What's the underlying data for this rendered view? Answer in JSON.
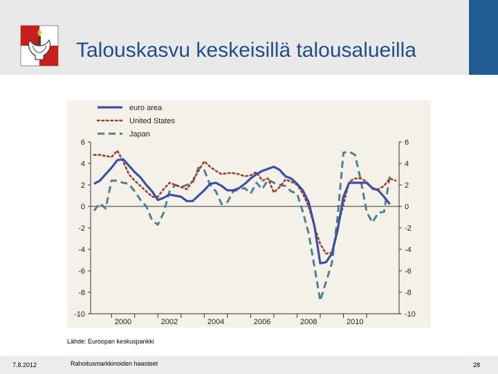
{
  "header": {
    "title": "Talouskasvu keskeisillä talousalueilla"
  },
  "colors": {
    "header_bg": "#e9e9e9",
    "accent": "#215b93",
    "title": "#1f4e8c",
    "plot_bg": "#f4f2e8",
    "euro_area": "#3b4fa8",
    "united_states": "#a33a2a",
    "japan": "#4e8090"
  },
  "logo": {
    "icon": "torch-crest-icon"
  },
  "source": "Lähde:  Euroopan keskuspankki",
  "footer": {
    "date": "7.8.2012",
    "center": "Rahoitusmarkkinoiden haasteet",
    "page": "28"
  },
  "chart_data": {
    "type": "line",
    "title": "",
    "xlabel": "",
    "ylabel": "",
    "ylim": [
      -10,
      6
    ],
    "xlim": [
      1999.1,
      2012.4
    ],
    "yticks": [
      6,
      4,
      2,
      0,
      -2,
      -4,
      -6,
      -8,
      -10
    ],
    "xticks": [
      "2000",
      "2002",
      "2004",
      "2006",
      "2008",
      "2010"
    ],
    "legend_position": "top-left",
    "grid": false,
    "series": [
      {
        "name": "euro area",
        "style": "solid",
        "points": [
          [
            1999.25,
            2.1
          ],
          [
            1999.5,
            2.4
          ],
          [
            1999.75,
            3.0
          ],
          [
            2000.0,
            3.6
          ],
          [
            2000.25,
            4.3
          ],
          [
            2000.5,
            4.4
          ],
          [
            2000.75,
            3.8
          ],
          [
            2001.0,
            3.2
          ],
          [
            2001.25,
            2.7
          ],
          [
            2001.5,
            2.0
          ],
          [
            2001.75,
            1.4
          ],
          [
            2002.0,
            0.6
          ],
          [
            2002.25,
            0.8
          ],
          [
            2002.5,
            1.1
          ],
          [
            2002.75,
            1.0
          ],
          [
            2003.0,
            0.9
          ],
          [
            2003.25,
            0.5
          ],
          [
            2003.5,
            0.5
          ],
          [
            2003.75,
            1.0
          ],
          [
            2004.0,
            1.5
          ],
          [
            2004.25,
            2.1
          ],
          [
            2004.5,
            2.2
          ],
          [
            2004.75,
            1.9
          ],
          [
            2005.0,
            1.5
          ],
          [
            2005.25,
            1.5
          ],
          [
            2005.5,
            1.7
          ],
          [
            2005.75,
            2.1
          ],
          [
            2006.0,
            2.6
          ],
          [
            2006.25,
            3.0
          ],
          [
            2006.5,
            3.3
          ],
          [
            2006.75,
            3.5
          ],
          [
            2007.0,
            3.7
          ],
          [
            2007.25,
            3.4
          ],
          [
            2007.5,
            2.8
          ],
          [
            2007.75,
            2.6
          ],
          [
            2008.0,
            2.1
          ],
          [
            2008.25,
            1.5
          ],
          [
            2008.5,
            0.4
          ],
          [
            2008.75,
            -1.8
          ],
          [
            2009.0,
            -5.3
          ],
          [
            2009.25,
            -5.2
          ],
          [
            2009.5,
            -4.4
          ],
          [
            2009.75,
            -2.2
          ],
          [
            2010.0,
            0.9
          ],
          [
            2010.25,
            2.2
          ],
          [
            2010.5,
            2.2
          ],
          [
            2010.75,
            2.2
          ],
          [
            2011.0,
            2.2
          ],
          [
            2011.25,
            1.7
          ],
          [
            2011.5,
            1.5
          ],
          [
            2011.75,
            0.9
          ],
          [
            2012.0,
            0.2
          ]
        ]
      },
      {
        "name": "United States",
        "style": "dotted",
        "points": [
          [
            1999.25,
            4.8
          ],
          [
            1999.5,
            4.8
          ],
          [
            1999.75,
            4.7
          ],
          [
            2000.0,
            4.6
          ],
          [
            2000.25,
            5.2
          ],
          [
            2000.5,
            4.2
          ],
          [
            2000.75,
            3.0
          ],
          [
            2001.0,
            2.4
          ],
          [
            2001.25,
            1.9
          ],
          [
            2001.5,
            1.4
          ],
          [
            2001.75,
            0.9
          ],
          [
            2002.0,
            0.9
          ],
          [
            2002.25,
            1.6
          ],
          [
            2002.5,
            2.2
          ],
          [
            2002.75,
            2.0
          ],
          [
            2003.0,
            1.8
          ],
          [
            2003.25,
            1.6
          ],
          [
            2003.5,
            2.4
          ],
          [
            2003.75,
            3.3
          ],
          [
            2004.0,
            4.2
          ],
          [
            2004.25,
            3.7
          ],
          [
            2004.5,
            3.3
          ],
          [
            2004.75,
            3.0
          ],
          [
            2005.0,
            3.1
          ],
          [
            2005.25,
            3.1
          ],
          [
            2005.5,
            3.0
          ],
          [
            2005.75,
            2.8
          ],
          [
            2006.0,
            2.9
          ],
          [
            2006.25,
            3.2
          ],
          [
            2006.5,
            2.4
          ],
          [
            2006.75,
            2.6
          ],
          [
            2007.0,
            1.3
          ],
          [
            2007.25,
            1.8
          ],
          [
            2007.5,
            2.5
          ],
          [
            2007.75,
            2.3
          ],
          [
            2008.0,
            2.0
          ],
          [
            2008.25,
            1.2
          ],
          [
            2008.5,
            0.0
          ],
          [
            2008.75,
            -1.9
          ],
          [
            2009.0,
            -3.5
          ],
          [
            2009.25,
            -4.4
          ],
          [
            2009.5,
            -4.3
          ],
          [
            2009.75,
            -2.0
          ],
          [
            2010.0,
            0.2
          ],
          [
            2010.25,
            2.3
          ],
          [
            2010.5,
            2.6
          ],
          [
            2010.75,
            2.6
          ],
          [
            2011.0,
            2.3
          ],
          [
            2011.25,
            1.6
          ],
          [
            2011.5,
            1.6
          ],
          [
            2011.75,
            1.9
          ],
          [
            2012.0,
            2.6
          ],
          [
            2012.25,
            2.4
          ]
        ]
      },
      {
        "name": "Japan",
        "style": "dashed",
        "points": [
          [
            1999.25,
            -0.4
          ],
          [
            1999.5,
            0.3
          ],
          [
            1999.75,
            -0.2
          ],
          [
            2000.0,
            2.4
          ],
          [
            2000.25,
            2.4
          ],
          [
            2000.5,
            2.2
          ],
          [
            2000.75,
            2.1
          ],
          [
            2001.0,
            1.4
          ],
          [
            2001.25,
            0.6
          ],
          [
            2001.5,
            0.0
          ],
          [
            2001.75,
            -1.3
          ],
          [
            2002.0,
            -1.7
          ],
          [
            2002.25,
            -0.6
          ],
          [
            2002.5,
            1.4
          ],
          [
            2002.75,
            2.0
          ],
          [
            2003.0,
            1.8
          ],
          [
            2003.25,
            2.0
          ],
          [
            2003.5,
            2.2
          ],
          [
            2003.75,
            3.6
          ],
          [
            2004.0,
            3.4
          ],
          [
            2004.25,
            2.0
          ],
          [
            2004.5,
            1.4
          ],
          [
            2004.75,
            0.2
          ],
          [
            2005.0,
            0.4
          ],
          [
            2005.25,
            1.4
          ],
          [
            2005.5,
            1.6
          ],
          [
            2005.75,
            1.7
          ],
          [
            2006.0,
            1.2
          ],
          [
            2006.25,
            2.2
          ],
          [
            2006.5,
            1.6
          ],
          [
            2006.75,
            2.5
          ],
          [
            2007.0,
            2.2
          ],
          [
            2007.25,
            2.0
          ],
          [
            2007.5,
            1.9
          ],
          [
            2007.75,
            1.4
          ],
          [
            2008.0,
            1.2
          ],
          [
            2008.25,
            -0.5
          ],
          [
            2008.5,
            -2.5
          ],
          [
            2008.75,
            -5.6
          ],
          [
            2009.0,
            -8.8
          ],
          [
            2009.25,
            -7.0
          ],
          [
            2009.5,
            -5.3
          ],
          [
            2009.75,
            -1.0
          ],
          [
            2010.0,
            5.0
          ],
          [
            2010.25,
            5.1
          ],
          [
            2010.5,
            4.8
          ],
          [
            2010.75,
            2.4
          ],
          [
            2011.0,
            -0.5
          ],
          [
            2011.25,
            -1.5
          ],
          [
            2011.5,
            -0.6
          ],
          [
            2011.75,
            -0.5
          ],
          [
            2012.0,
            2.8
          ]
        ]
      }
    ]
  }
}
